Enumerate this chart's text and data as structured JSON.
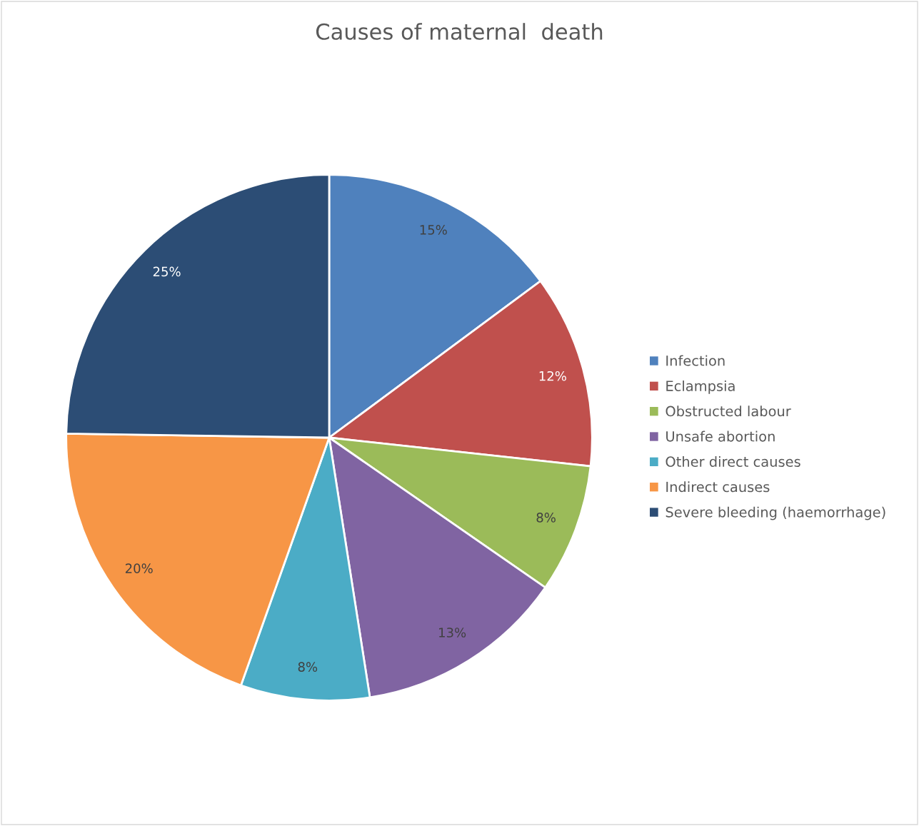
{
  "chart_data": {
    "type": "pie",
    "title": "Causes of maternal  death",
    "categories": [
      "Infection",
      "Eclampsia",
      "Obstructed labour",
      "Unsafe abortion",
      "Other direct causes",
      "Indirect causes",
      "Severe bleeding (haemorrhage)"
    ],
    "values": [
      15,
      12,
      8,
      13,
      8,
      20,
      25
    ],
    "value_labels": [
      "15%",
      "12%",
      "8%",
      "13%",
      "8%",
      "20%",
      "25%"
    ],
    "colors": [
      "#4f81bd",
      "#c0504d",
      "#9bbb59",
      "#8064a2",
      "#4bacc6",
      "#f79646",
      "#2c4d75"
    ],
    "legend": "right"
  }
}
